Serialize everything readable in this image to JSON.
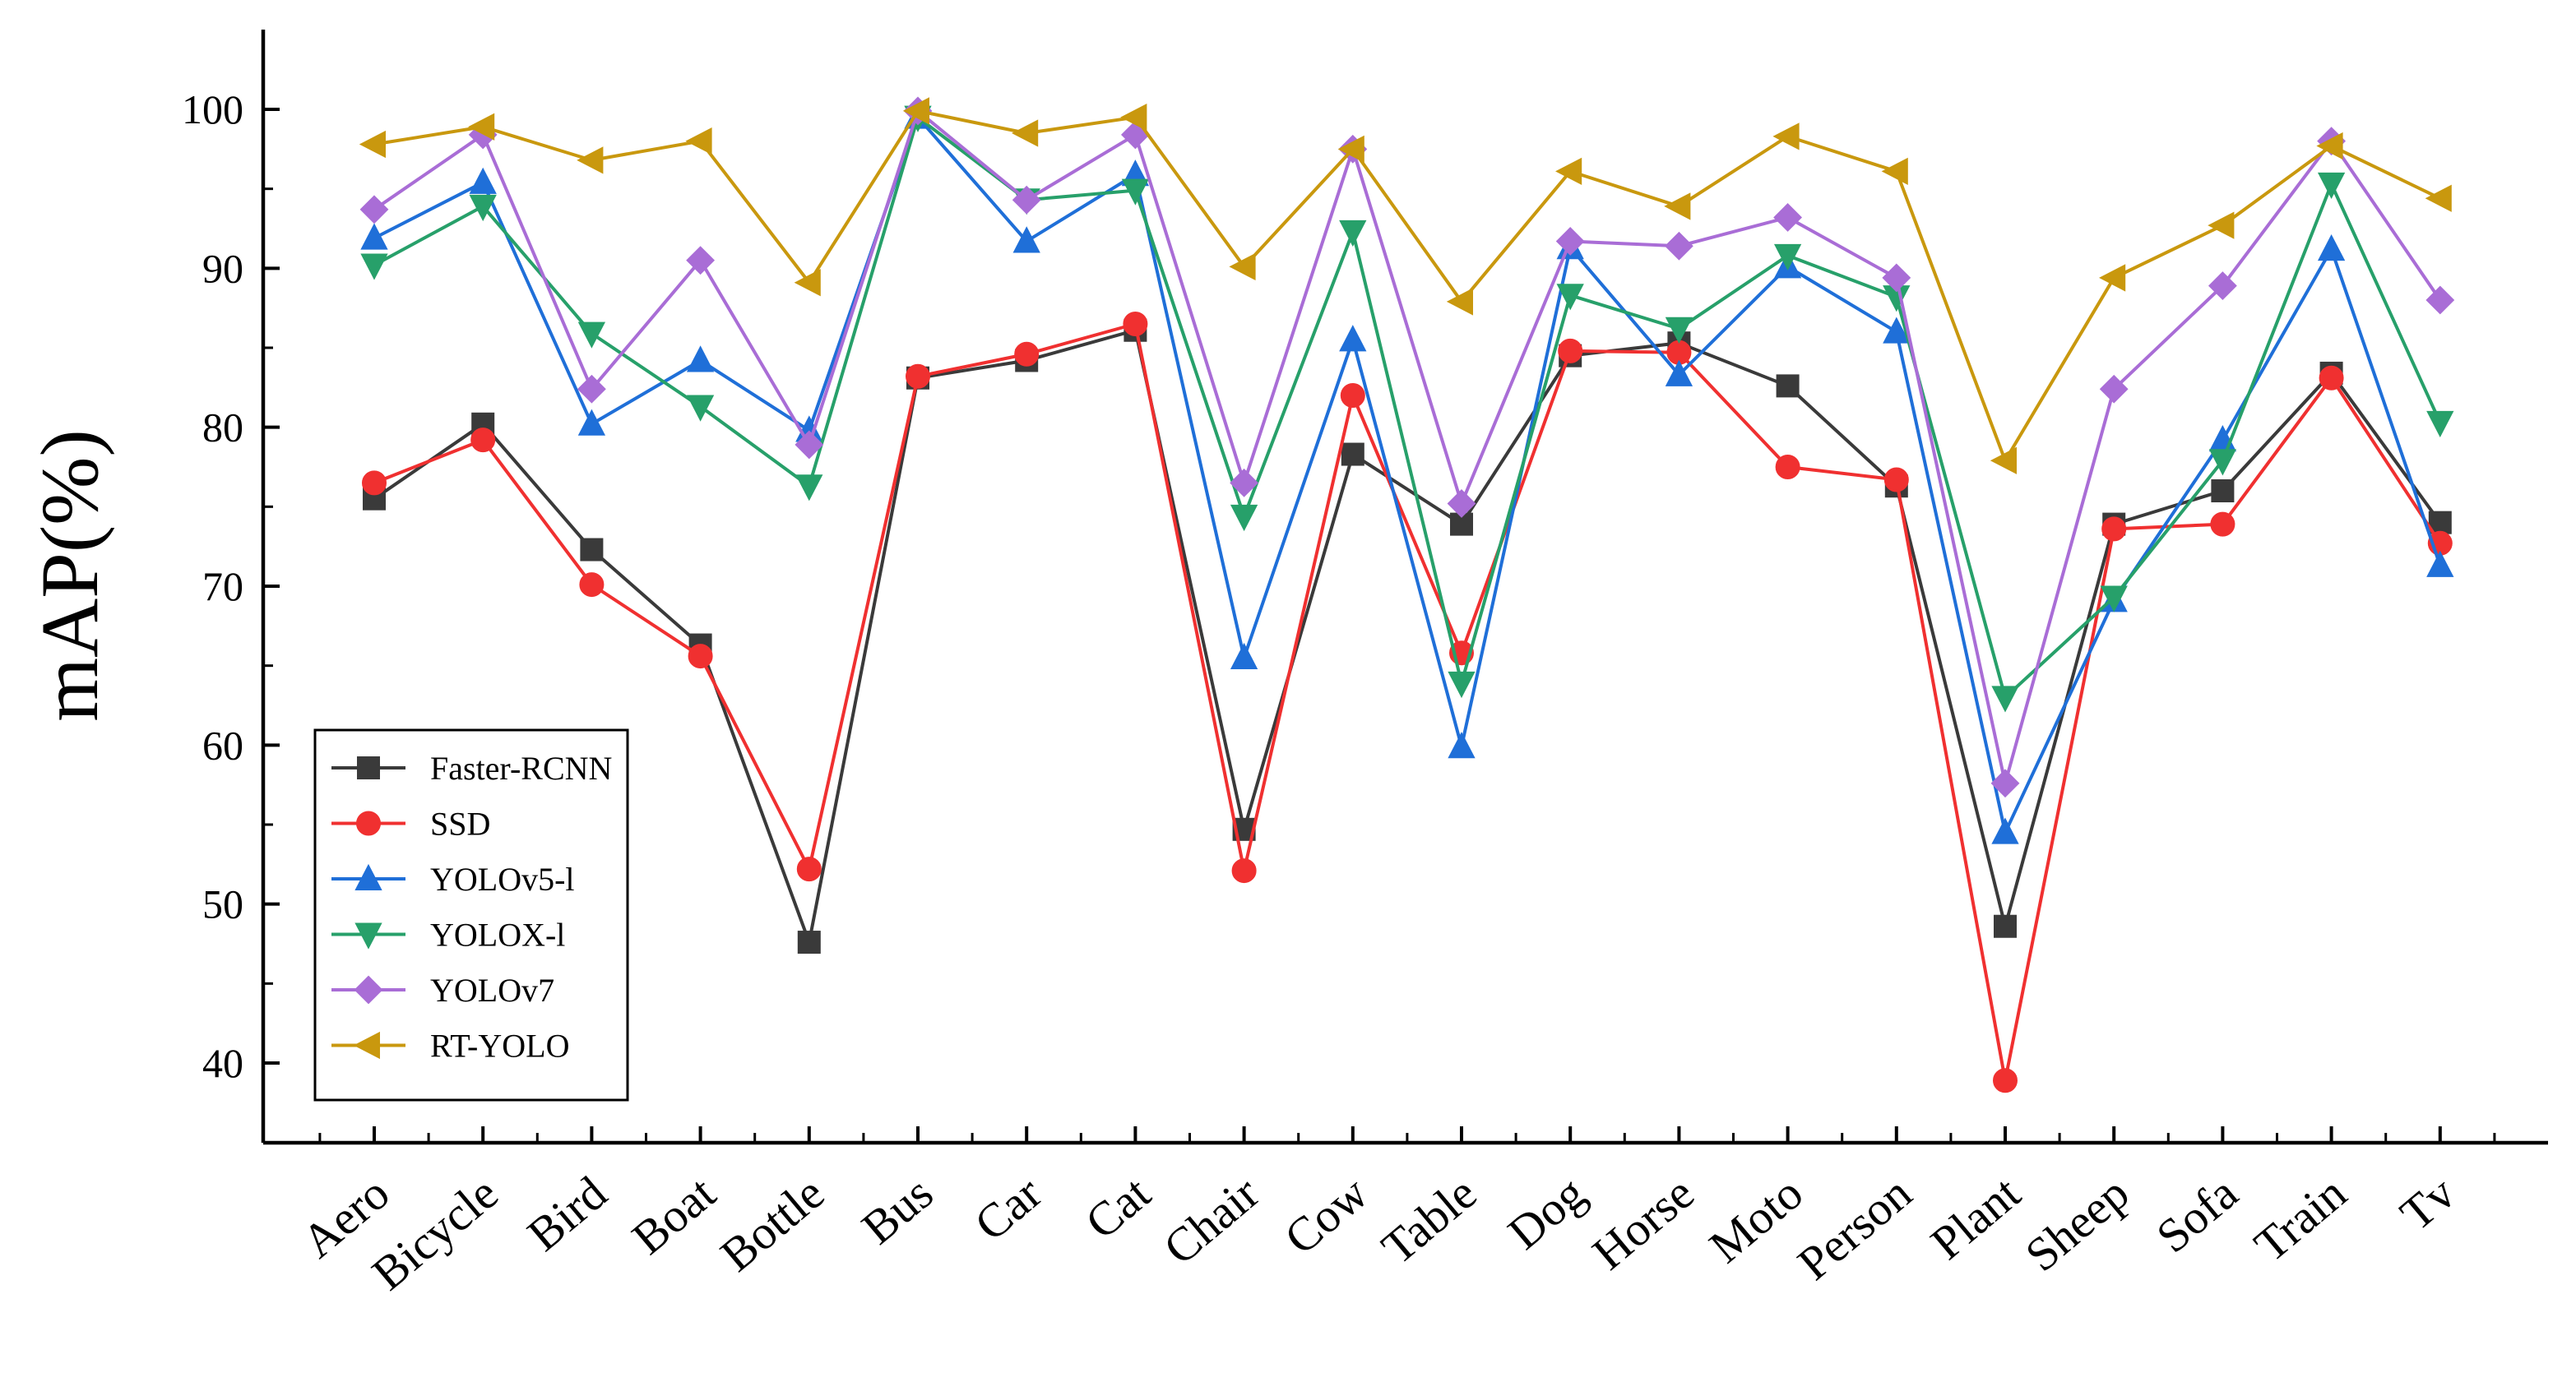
{
  "chart_data": {
    "type": "line",
    "title": "",
    "xlabel": "",
    "ylabel": "mAP(%)",
    "ylim": [
      33,
      105
    ],
    "yticks": [
      40,
      50,
      60,
      70,
      80,
      90,
      100
    ],
    "grid": false,
    "legend_position": "bottom-left",
    "categories": [
      "Aero",
      "Bicycle",
      "Bird",
      "Boat",
      "Bottle",
      "Bus",
      "Car",
      "Cat",
      "Chair",
      "Cow",
      "Table",
      "Dog",
      "Horse",
      "Moto",
      "Person",
      "Plant",
      "Sheep",
      "Sofa",
      "Train",
      "Tv"
    ],
    "series": [
      {
        "name": "Faster-RCNN",
        "color": "#3a3a3a",
        "marker": "square",
        "values": [
          75.5,
          80.2,
          72.3,
          66.3,
          47.6,
          83.1,
          84.2,
          86.1,
          54.7,
          78.3,
          73.9,
          84.5,
          85.3,
          82.6,
          76.3,
          48.6,
          73.9,
          76.0,
          83.4,
          74.0
        ]
      },
      {
        "name": "SSD",
        "color": "#f03030",
        "marker": "circle",
        "values": [
          76.5,
          79.2,
          70.1,
          65.6,
          52.2,
          83.2,
          84.6,
          86.5,
          52.1,
          82.0,
          65.8,
          84.8,
          84.7,
          77.5,
          76.7,
          38.9,
          73.6,
          73.9,
          83.1,
          72.7
        ]
      },
      {
        "name": "YOLOv5-l",
        "color": "#1f6fd8",
        "marker": "triangle-up",
        "values": [
          91.9,
          95.4,
          80.2,
          84.2,
          79.8,
          99.5,
          91.7,
          95.9,
          65.5,
          85.5,
          59.9,
          91.3,
          83.3,
          90.1,
          86.0,
          54.5,
          69.1,
          79.2,
          91.2,
          71.3
        ]
      },
      {
        "name": "YOLOX-l",
        "color": "#27a06a",
        "marker": "triangle-down",
        "values": [
          90.2,
          93.9,
          85.9,
          81.3,
          76.3,
          99.5,
          94.3,
          94.9,
          74.4,
          92.3,
          63.9,
          88.3,
          86.2,
          90.8,
          88.2,
          63.0,
          69.3,
          77.9,
          95.3,
          80.3
        ]
      },
      {
        "name": "YOLOv7",
        "color": "#a96dd6",
        "marker": "diamond",
        "values": [
          93.7,
          98.4,
          82.4,
          90.5,
          78.9,
          99.9,
          94.3,
          98.4,
          76.5,
          97.5,
          75.2,
          91.7,
          91.4,
          93.2,
          89.4,
          57.6,
          82.4,
          88.9,
          98.0,
          88.0
        ]
      },
      {
        "name": "RT-YOLO",
        "color": "#c9980e",
        "marker": "triangle-left",
        "values": [
          97.8,
          98.9,
          96.8,
          98.0,
          89.1,
          99.9,
          98.5,
          99.5,
          90.1,
          97.5,
          87.9,
          96.1,
          93.9,
          98.3,
          96.1,
          77.9,
          89.4,
          92.7,
          97.7,
          94.4
        ]
      }
    ]
  }
}
